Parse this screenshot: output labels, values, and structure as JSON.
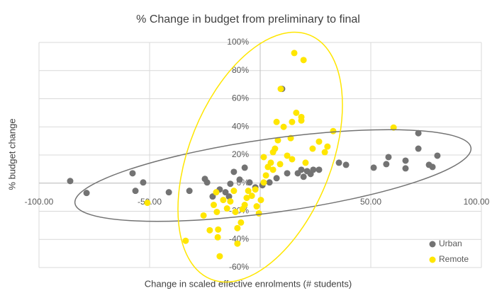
{
  "chart_data": {
    "type": "scatter",
    "title": "% Change in budget from preliminary to final",
    "x_label": "Change in scaled effective enrolments (# students)",
    "y_label": "% budget change",
    "xlim": [
      -100,
      100
    ],
    "ylim": [
      -60,
      100
    ],
    "xticks": [
      {
        "value": -100,
        "label": "-100.00"
      },
      {
        "value": -50,
        "label": "-50.00"
      },
      {
        "value": 50,
        "label": "50.00"
      },
      {
        "value": 100,
        "label": "100.00"
      }
    ],
    "yticks": [
      {
        "value": -60,
        "label": "-60%"
      },
      {
        "value": -40,
        "label": "-40%"
      },
      {
        "value": -20,
        "label": "-20%"
      },
      {
        "value": 0,
        "label": "0%"
      },
      {
        "value": 20,
        "label": "20%"
      },
      {
        "value": 40,
        "label": "40%"
      },
      {
        "value": 60,
        "label": "60%"
      },
      {
        "value": 80,
        "label": "80%"
      },
      {
        "value": 100,
        "label": "100%"
      }
    ],
    "grid": true,
    "legend": "bottom-right",
    "series": [
      {
        "name": "Urban",
        "color": "#737373",
        "x": [
          -85.9,
          -78.5,
          -57.7,
          -56.4,
          -52.9,
          -41.3,
          -32,
          -25,
          -24,
          -21.5,
          -18.3,
          -15.7,
          -14.1,
          -11.9,
          -13.5,
          -9.3,
          -7,
          -4.8,
          -2.2,
          1,
          4.2,
          7.4,
          9.9,
          12.2,
          17,
          18.6,
          19.6,
          21.2,
          22.8,
          24,
          26.6,
          35.6,
          38.8,
          51.3,
          57,
          58,
          65.7,
          65.7,
          71.5,
          71.5,
          76.3,
          77.9,
          80.1
        ],
        "values": [
          1.5,
          -7,
          7,
          -5.5,
          0.5,
          -6.5,
          -5.5,
          3,
          0.5,
          -9.5,
          -4.5,
          -6.5,
          -9.5,
          8,
          -0.5,
          2.5,
          11,
          0.5,
          -3,
          -1.5,
          0.5,
          3.5,
          67,
          7,
          7,
          9.5,
          4.5,
          8.5,
          6.5,
          9.5,
          9.5,
          14.5,
          13,
          11,
          13.5,
          18.5,
          16,
          10.5,
          35.5,
          24.5,
          13,
          11.5,
          19.5
        ]
      },
      {
        "name": "Remote",
        "color": "#ffe600",
        "x": [
          -51,
          -33.7,
          -25.6,
          -22.8,
          -21,
          -19.9,
          -19.6,
          -19,
          -19.2,
          -18.3,
          -16.7,
          -15,
          -13.5,
          -11.9,
          -11.2,
          -10.3,
          -10.3,
          -8.7,
          -8,
          -7,
          -6.1,
          -5.4,
          -3.8,
          -2.2,
          -1.6,
          -0.6,
          0.3,
          1.6,
          1.6,
          2.6,
          3.5,
          4.8,
          5.8,
          5.8,
          6.7,
          7.4,
          9,
          8,
          9.3,
          10.6,
          12.2,
          13.8,
          14.4,
          16.3,
          18.6,
          15.4,
          19.6,
          18.6,
          20.5,
          23.7,
          26.6,
          30.4,
          33,
          29.2,
          60.3,
          14.4
        ],
        "values": [
          -14,
          -41,
          -23,
          -33.5,
          -15.5,
          -6.5,
          -20.5,
          -33,
          -38.5,
          -52,
          -12,
          -18,
          -13,
          -5.5,
          -20.5,
          -43,
          -32,
          -28,
          -18.5,
          -15.5,
          -10.5,
          -5.5,
          -9,
          -4.5,
          -16.5,
          -21.5,
          -12,
          0.5,
          18.5,
          5.5,
          11.5,
          14.5,
          9.5,
          22,
          24.5,
          43.5,
          13.5,
          30.5,
          67,
          40,
          19.5,
          32,
          43.5,
          50,
          47,
          92.5,
          87.5,
          44.5,
          14.5,
          24.5,
          29.5,
          26,
          37,
          22,
          39.5,
          17
        ]
      }
    ]
  }
}
